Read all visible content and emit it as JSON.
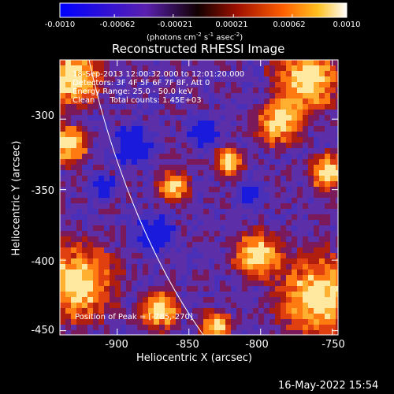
{
  "colorbar": {
    "ticks": [
      "-0.0010",
      "-0.00062",
      "-0.00021",
      "0.00021",
      "0.00062",
      "0.0010"
    ],
    "tick_values": [
      -0.001,
      -0.00062,
      -0.00021,
      0.00021,
      0.00062,
      0.001
    ],
    "range": [
      -0.001,
      0.001
    ],
    "units_prefix": "(photons cm",
    "units_exp1": "-2",
    "units_mid1": " s",
    "units_exp2": "-1",
    "units_mid2": " asec",
    "units_exp3": "-2",
    "units_suffix": ")",
    "colors": [
      "#0000ff",
      "#4b1fb3",
      "#200000",
      "#a01000",
      "#ff6a00",
      "#ffd020",
      "#ffffff"
    ]
  },
  "title": "Reconstructed RHESSI Image",
  "annotations": [
    "18-Sep-2013 12:00:32.000 to 12:01:20.000",
    "Detectors: 3F 4F 5F 6F 7F 8F, Att 0",
    "Energy Range: 25.0 - 50.0 keV",
    "Clean      Total counts: 1.45E+03"
  ],
  "peak_label": "Position of Peak = [-785,-270]",
  "peak_position": [
    -785,
    -270
  ],
  "xaxis": {
    "label": "Heliocentric X (arcsec)",
    "ticks": [
      "-900",
      "-850",
      "-800",
      "-750"
    ],
    "tick_values": [
      -900,
      -850,
      -800,
      -750
    ],
    "range": [
      -940,
      -746
    ]
  },
  "yaxis": {
    "label": "Heliocentric Y (arcsec)",
    "ticks": [
      "-300",
      "-350",
      "-400",
      "-450"
    ],
    "tick_values": [
      -300,
      -350,
      -400,
      -450
    ],
    "range": [
      -453,
      -258
    ]
  },
  "footer_date": "16-May-2022 15:54"
}
